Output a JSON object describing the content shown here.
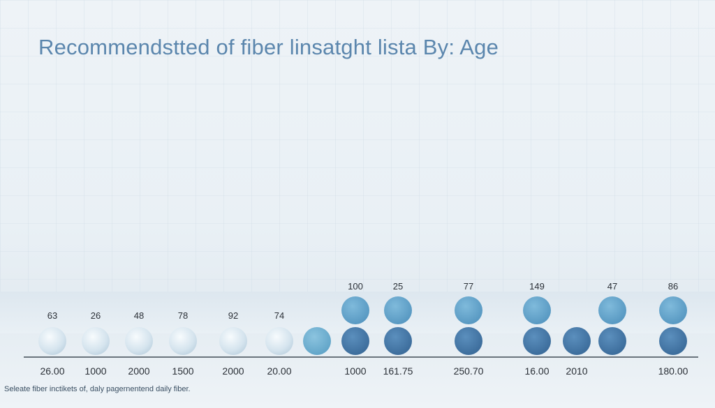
{
  "chart_data": {
    "type": "scatter",
    "title": "Recommendstted of fiber linsatght lista By: Age",
    "footnote": "Seleate fiber inctikets of, daly pagernentend daily fiber.",
    "xlabel": "",
    "ylabel": "",
    "categories": [
      "26.00",
      "1000",
      "2000",
      "1500",
      "2000",
      "20.00",
      "",
      "1000",
      "161.75",
      "250.70",
      "16.00",
      "2010",
      "",
      "180.00"
    ],
    "points": [
      {
        "label": "63",
        "count": 1,
        "shade": "light"
      },
      {
        "label": "26",
        "count": 1,
        "shade": "light"
      },
      {
        "label": "48",
        "count": 1,
        "shade": "light"
      },
      {
        "label": "78",
        "count": 1,
        "shade": "light"
      },
      {
        "label": "92",
        "count": 1,
        "shade": "light"
      },
      {
        "label": "74",
        "count": 1,
        "shade": "light"
      },
      {
        "label": "",
        "count": 1,
        "shade": "medium"
      },
      {
        "label": "100",
        "count": 2,
        "shade": "dark"
      },
      {
        "label": "25",
        "count": 2,
        "shade": "dark"
      },
      {
        "label": "77",
        "count": 2,
        "shade": "dark"
      },
      {
        "label": "149",
        "count": 2,
        "shade": "dark"
      },
      {
        "label": "",
        "count": 1,
        "shade": "dark"
      },
      {
        "label": "47",
        "count": 2,
        "shade": "dark"
      },
      {
        "label": "86",
        "count": 2,
        "shade": "dark"
      }
    ]
  },
  "colors": {
    "title": "#5b86ad",
    "light": "#d5e4ee",
    "medium": "#6aaccd",
    "top": "#5b9dc6",
    "dark": "#3f72a3",
    "axis": "#1e2a36",
    "text": "#2a2f36"
  }
}
